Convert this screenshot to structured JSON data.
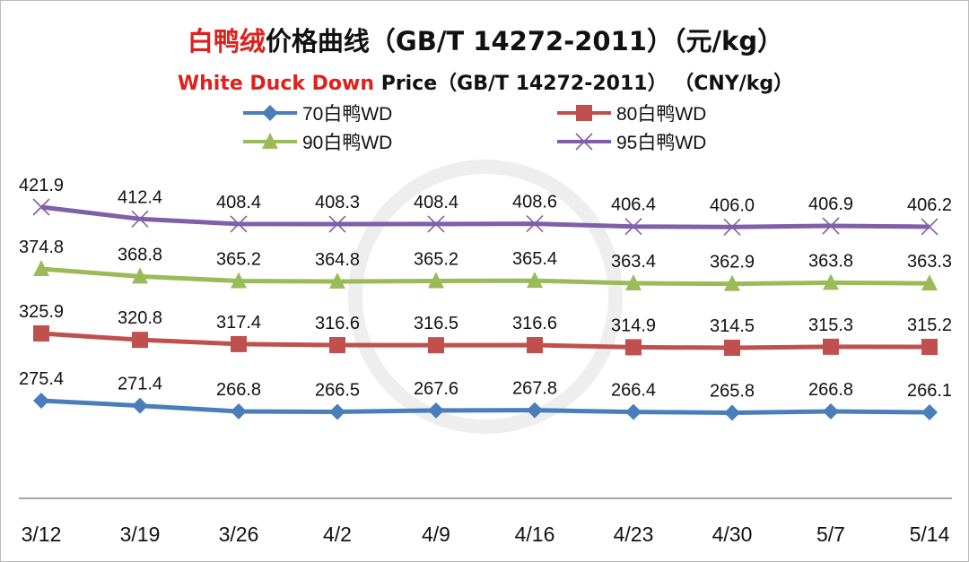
{
  "chart_data": {
    "type": "line",
    "title_red": "白鸭绒",
    "title_rest": "价格曲线（GB/T 14272-2011）（元/kg）",
    "subtitle_red": "White Duck Down",
    "subtitle_rest": " Price（GB/T 14272-2011） （CNY/kg）",
    "xlabel": "",
    "ylabel": "",
    "grid": false,
    "legend_position": "top",
    "categories": [
      "3/12",
      "3/19",
      "3/26",
      "4/2",
      "4/9",
      "4/16",
      "4/23",
      "4/30",
      "5/7",
      "5/14"
    ],
    "series": [
      {
        "name": "70白鸭WD",
        "color": "#4a7ebb",
        "marker": "diamond",
        "values": [
          275.4,
          271.4,
          266.8,
          266.5,
          267.6,
          267.8,
          266.4,
          265.8,
          266.8,
          266.1
        ]
      },
      {
        "name": "80白鸭WD",
        "color": "#c0504d",
        "marker": "square",
        "values": [
          325.9,
          320.8,
          317.4,
          316.6,
          316.5,
          316.6,
          314.9,
          314.5,
          315.3,
          315.2
        ]
      },
      {
        "name": "90白鸭WD",
        "color": "#9bbb59",
        "marker": "triangle",
        "values": [
          374.8,
          368.8,
          365.2,
          364.8,
          365.2,
          365.4,
          363.4,
          362.9,
          363.8,
          363.3
        ]
      },
      {
        "name": "95白鸭WD",
        "color": "#7f5fa8",
        "marker": "x",
        "values": [
          421.9,
          412.4,
          408.4,
          408.3,
          408.4,
          408.6,
          406.4,
          406.0,
          406.9,
          406.2
        ]
      }
    ]
  }
}
